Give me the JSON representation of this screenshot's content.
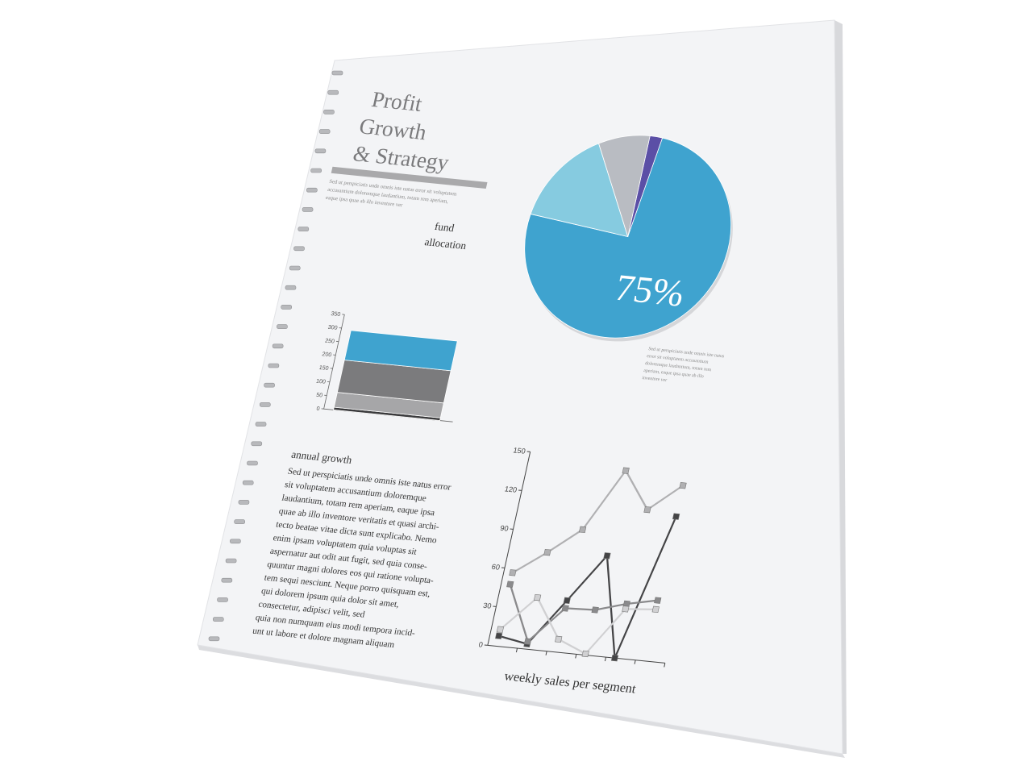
{
  "document": {
    "title_lines": [
      "Profit",
      "Growth",
      "& Strategy"
    ],
    "intro_lines": [
      "Sed ut perspiciatis unde omnis iste natus error sit voluptatem",
      "accusantium doloremque laudantium, totam rem aperiam,",
      "eaque ipsa quae ab illo inventore ver"
    ],
    "pie_caption_lines": [
      "Sed ut perspiciatis unde omnis iste natus",
      "error sit voluptatem accusantium",
      "doloremque laudantium, totam rem",
      "aperiam, eaque ipsa quae ab illo",
      "inventore ver"
    ],
    "annual_growth": {
      "heading": "annual growth",
      "lines": [
        "Sed ut perspiciatis unde omnis iste natus error",
        "sit voluptatem accusantium doloremque",
        "laudantium, totam rem aperiam, eaque ipsa",
        "quae ab illo inventore veritatis et quasi archi-",
        "tecto beatae vitae dicta sunt explicabo. Nemo",
        "enim ipsam voluptatem quia voluptas sit",
        "aspernatur aut odit aut fugit, sed quia conse-",
        "quuntur magni dolores eos qui ratione volupta-",
        "tem sequi nesciunt. Neque porro quisquam est,",
        "qui dolorem ipsum quia dolor sit amet,",
        "consectetur, adipisci velit, sed",
        "quia non numquam eius modi tempora incid-",
        "unt ut labore et dolore magnam aliquam"
      ]
    }
  },
  "chart_data": [
    {
      "type": "pie",
      "label_lines": [
        "fund",
        "allocation"
      ],
      "values": [
        2,
        75,
        15,
        8
      ],
      "value_labels": [
        null,
        "75%",
        null,
        null
      ],
      "colors": [
        "#5b4fa6",
        "#3fa3cf",
        "#86cbe0",
        "#b9bcc2"
      ]
    },
    {
      "type": "bar",
      "stacked": true,
      "categories": [
        null
      ],
      "ylim": [
        0,
        350
      ],
      "yticks": [
        0,
        50,
        100,
        150,
        200,
        250,
        300,
        350
      ],
      "series": [
        {
          "color": "#3a3a3c",
          "values": [
            10
          ]
        },
        {
          "color": "#a6a6a8",
          "values": [
            55
          ]
        },
        {
          "color": "#7b7b7d",
          "values": [
            120
          ]
        },
        {
          "color": "#3fa3cf",
          "values": [
            110
          ]
        }
      ]
    },
    {
      "type": "line",
      "x_label": "weekly sales per segment",
      "categories": [
        null,
        null,
        null,
        null,
        null,
        null
      ],
      "ylim": [
        0,
        150
      ],
      "yticks": [
        0,
        30,
        60,
        90,
        120,
        150
      ],
      "series": [
        {
          "color": "#b0b0b2",
          "values": [
            57,
            75,
            95,
            143,
            115,
            136
          ]
        },
        {
          "color": "#444446",
          "values": [
            8,
            4,
            40,
            77,
            0,
            112
          ]
        },
        {
          "color": "#8a8a8c",
          "values": [
            48,
            6,
            34,
            35,
            42,
            47
          ]
        },
        {
          "color": "#d0d0d2",
          "values": [
            13,
            40,
            10,
            1,
            38,
            40
          ]
        }
      ]
    }
  ]
}
